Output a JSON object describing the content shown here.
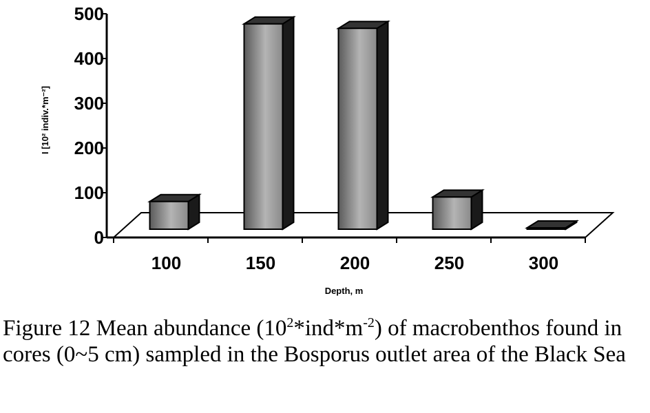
{
  "chart_data": {
    "type": "bar",
    "style": "3d",
    "categories": [
      "100",
      "150",
      "200",
      "250",
      "300"
    ],
    "values": [
      65,
      462,
      452,
      75,
      3
    ],
    "ylim": [
      0,
      500
    ],
    "yticks": [
      "0",
      "100",
      "200",
      "300",
      "400",
      "500"
    ],
    "xlabel": "Depth, m",
    "ylabel": "I [10² indiv.*m⁻²]",
    "grid": false,
    "legend": "none"
  },
  "caption": {
    "part1": "Figure 12 Mean abundance (10",
    "sup1": "2",
    "part2": "*ind*m",
    "sup2": "-2",
    "part3": ") of macrobenthos found in cores (0~5 cm) sampled in the Bosporus outlet area of the Black Sea"
  },
  "colors": {
    "bar_light": "#a8a8a8",
    "bar_dark": "#333333",
    "outline": "#000000"
  }
}
